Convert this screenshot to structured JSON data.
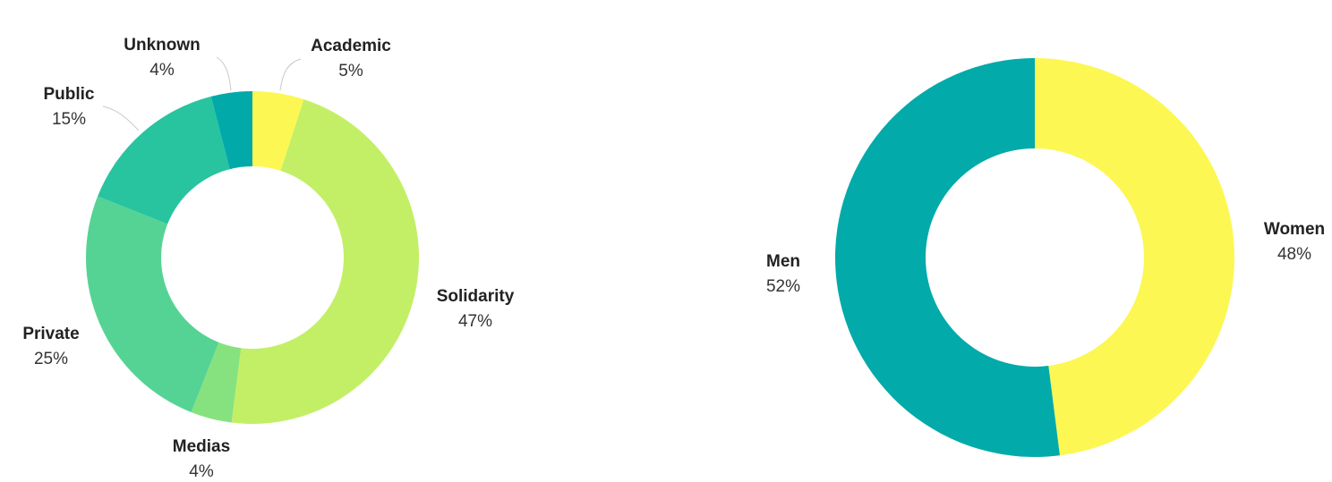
{
  "chart_data": [
    {
      "type": "pie",
      "categories": [
        "Academic",
        "Solidarity",
        "Medias",
        "Private",
        "Public",
        "Unknown"
      ],
      "values": [
        5,
        47,
        4,
        25,
        15,
        4
      ],
      "value_labels": [
        "5%",
        "47%",
        "4%",
        "25%",
        "15%",
        "4%"
      ],
      "colors": [
        "#fcf752",
        "#c3ef66",
        "#86e27f",
        "#55d394",
        "#28c49f",
        "#02a9a9"
      ],
      "donut": true,
      "legend": "none",
      "label_placement": "outside"
    },
    {
      "type": "pie",
      "categories": [
        "Women",
        "Men"
      ],
      "values": [
        48,
        52
      ],
      "value_labels": [
        "48%",
        "52%"
      ],
      "colors": [
        "#fcf752",
        "#02aaaa"
      ],
      "donut": true,
      "legend": "none",
      "label_placement": "outside"
    }
  ]
}
